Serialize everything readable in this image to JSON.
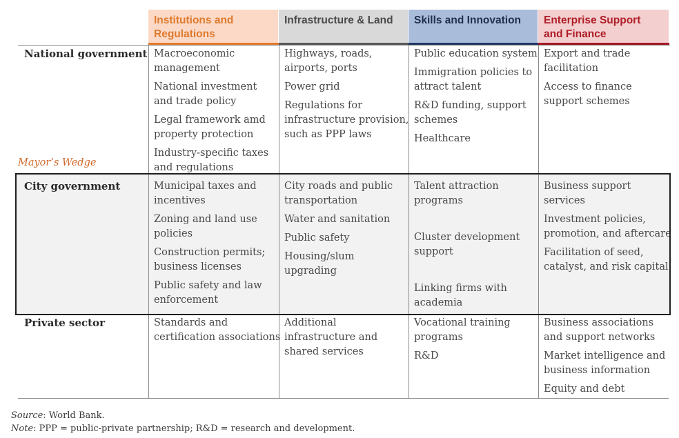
{
  "columns": [
    {
      "title_lines": [
        "Institutions and",
        "Regulations"
      ],
      "bg": "#fbd9c6",
      "text_color": "#e07a2e",
      "bar_color": "#e07a2e"
    },
    {
      "title_lines": [
        "Infrastructure & Land"
      ],
      "bg": "#d9d9d9",
      "text_color": "#4a4a4a",
      "bar_color": "#595959"
    },
    {
      "title_lines": [
        "Skills and Innovation"
      ],
      "bg": "#a9bcd9",
      "text_color": "#1f2e4d",
      "bar_color": "#1f3864"
    },
    {
      "title_lines": [
        "Enterprise Support",
        "and Finance"
      ],
      "bg": "#f3cfd0",
      "text_color": "#b01e26",
      "bar_color": "#a11a22"
    }
  ],
  "rows": [
    {
      "label": "National government",
      "cells": [
        [
          [
            "Macroeconomic",
            "management"
          ],
          [
            "National investment",
            "and trade policy"
          ],
          [
            "Legal framework amd",
            "property protection"
          ],
          [
            "Industry-specific taxes",
            "and regulations"
          ]
        ],
        [
          [
            "Highways, roads,",
            "airports, ports"
          ],
          [
            "Power grid"
          ],
          [
            "Regulations for",
            "infrastructure provision,",
            "such as PPP laws"
          ]
        ],
        [
          [
            "Public education system"
          ],
          [
            "Immigration policies to",
            "attract talent"
          ],
          [
            "R&D funding, support",
            "schemes"
          ],
          [
            "Healthcare"
          ]
        ],
        [
          [
            "Export and trade",
            "facilitation"
          ],
          [
            "Access to finance",
            "support schemes"
          ]
        ]
      ]
    },
    {
      "label": "City government",
      "cells": [
        [
          [
            "Municipal taxes and",
            "incentives"
          ],
          [
            "Zoning and land use",
            "policies"
          ],
          [
            "Construction permits;",
            "business licenses"
          ],
          [
            "Public safety and law",
            "enforcement"
          ]
        ],
        [
          [
            "City roads and public",
            "transportation"
          ],
          [
            "Water and sanitation"
          ],
          [
            "Public safety"
          ],
          [
            "Housing/slum",
            "upgrading"
          ]
        ],
        [
          [
            "Talent attraction",
            "programs"
          ],
          [
            "Cluster development",
            "support"
          ],
          [
            "Linking firms with",
            "academia"
          ]
        ],
        [
          [
            "Business support",
            "services"
          ],
          [
            "Investment policies,",
            "promotion, and aftercare"
          ],
          [
            "Facilitation of seed,",
            "catalyst, and risk capital"
          ]
        ]
      ]
    },
    {
      "label": "Private sector",
      "cells": [
        [
          [
            "Standards and",
            "certification associations"
          ]
        ],
        [
          [
            "Additional",
            "infrastructure and",
            "shared services"
          ]
        ],
        [
          [
            "Vocational training",
            "programs"
          ],
          [
            "R&D"
          ]
        ],
        [
          [
            "Business associations",
            "and support networks"
          ],
          [
            "Market intelligence and",
            "business information"
          ],
          [
            "Equity and debt"
          ]
        ]
      ]
    }
  ],
  "wedge_label": "Mayor’s Wedge",
  "footnotes": {
    "source_label": "Source",
    "source_text": ": World Bank.",
    "note_label": "Note",
    "note_text": ": PPP = public-private partnership; R&D = research and development."
  }
}
